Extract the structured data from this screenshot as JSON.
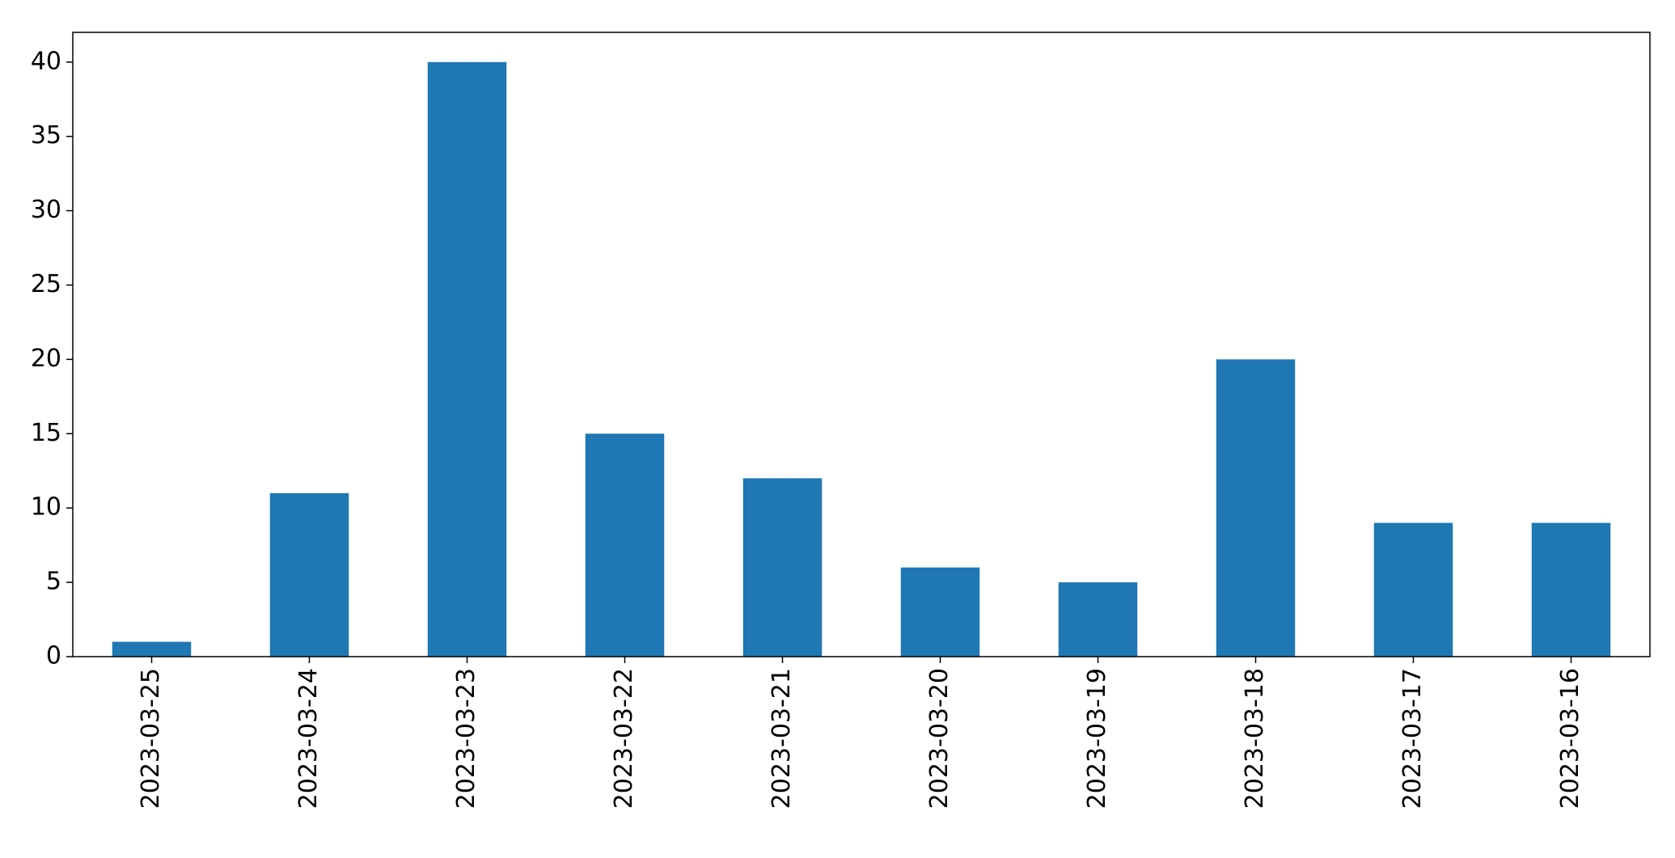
{
  "chart_data": {
    "type": "bar",
    "categories": [
      "2023-03-25",
      "2023-03-24",
      "2023-03-23",
      "2023-03-22",
      "2023-03-21",
      "2023-03-20",
      "2023-03-19",
      "2023-03-18",
      "2023-03-17",
      "2023-03-16"
    ],
    "values": [
      1,
      11,
      40,
      15,
      12,
      6,
      5,
      20,
      9,
      9
    ],
    "color": "#1f77b4",
    "ylim": [
      0,
      42
    ],
    "yticks": [
      0,
      5,
      10,
      15,
      20,
      25,
      30,
      35,
      40
    ],
    "grid": false
  }
}
